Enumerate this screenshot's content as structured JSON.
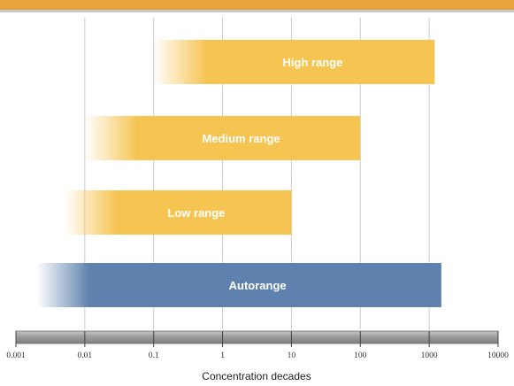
{
  "chart_data": {
    "type": "bar",
    "orientation": "horizontal",
    "x_scale": "log",
    "xlim": [
      0.001,
      10000
    ],
    "xlabel": "Concentration decades",
    "tick_labels": [
      "0.001",
      "0.01",
      "0.1",
      "1",
      "10",
      "100",
      "1000",
      "10000"
    ],
    "tick_values": [
      0.001,
      0.01,
      0.1,
      1,
      10,
      100,
      1000,
      10000
    ],
    "grid": true,
    "bars": [
      {
        "label": "High range",
        "start": 0.1,
        "end": 1200,
        "color": "#f6c451",
        "fade": "left"
      },
      {
        "label": "Medium range",
        "start": 0.01,
        "end": 100,
        "color": "#f6c451",
        "fade": "left"
      },
      {
        "label": "Low range",
        "start": 0.005,
        "end": 10,
        "color": "#f6c451",
        "fade": "left"
      },
      {
        "label": "Autorange",
        "start": 0.002,
        "end": 1500,
        "color": "#5e82ad",
        "fade": "left"
      }
    ]
  },
  "colors": {
    "header_band": "#e8a33a",
    "range_bar": "#f6c451",
    "autorange_bar": "#5e82ad",
    "gridline": "#cccccc",
    "axis_bar": "#9a9a9a"
  }
}
